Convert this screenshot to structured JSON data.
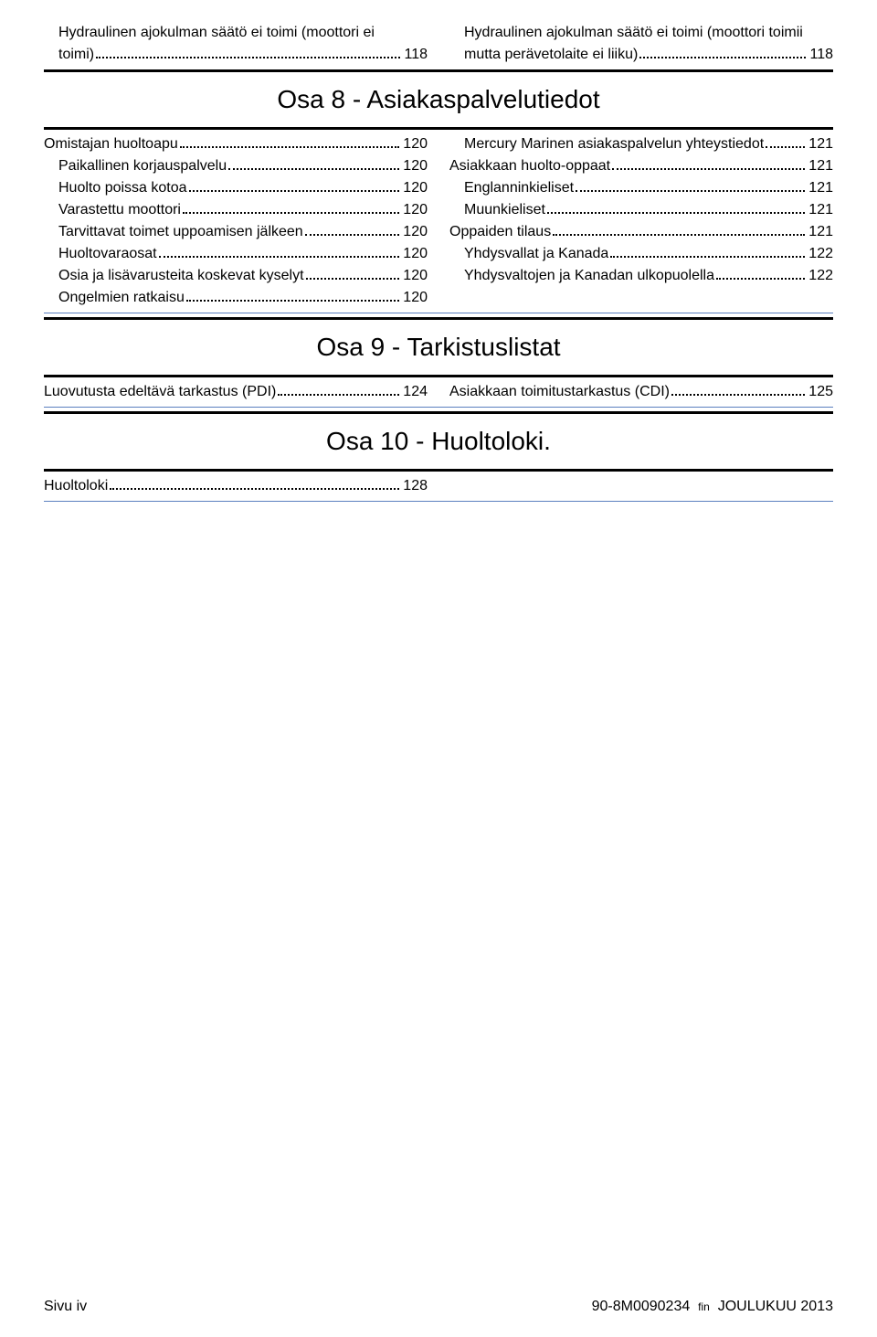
{
  "top": {
    "left": {
      "label_line1": "Hydraulinen ajokulman säätö ei toimi (moottori ei",
      "label_line2": "toimi)",
      "page": "118"
    },
    "right": {
      "label_line1": "Hydraulinen ajokulman säätö ei toimi (moottori toimii",
      "label_line2": "mutta perävetolaite ei liiku)",
      "page": "118"
    }
  },
  "section8": {
    "title": "Osa 8 - Asiakaspalvelutiedot",
    "left": [
      {
        "label": "Omistajan huoltoapu",
        "page": "120",
        "indent": 0
      },
      {
        "label": "Paikallinen korjauspalvelu",
        "page": "120",
        "indent": 1
      },
      {
        "label": "Huolto poissa kotoa",
        "page": "120",
        "indent": 1
      },
      {
        "label": "Varastettu moottori",
        "page": "120",
        "indent": 1
      },
      {
        "label": "Tarvittavat toimet uppoamisen jälkeen",
        "page": "120",
        "indent": 1
      },
      {
        "label": "Huoltovaraosat",
        "page": "120",
        "indent": 1
      },
      {
        "label": "Osia ja lisävarusteita koskevat kyselyt",
        "page": "120",
        "indent": 1
      },
      {
        "label": "Ongelmien ratkaisu",
        "page": "120",
        "indent": 1
      }
    ],
    "right": [
      {
        "label": "Mercury Marinen asiakaspalvelun yhteystiedot",
        "page": "121",
        "indent": 1
      },
      {
        "label": "Asiakkaan huolto-oppaat",
        "page": "121",
        "indent": 0
      },
      {
        "label": "Englanninkieliset",
        "page": "121",
        "indent": 1
      },
      {
        "label": "Muunkieliset",
        "page": "121",
        "indent": 1
      },
      {
        "label": "Oppaiden tilaus",
        "page": "121",
        "indent": 0
      },
      {
        "label": "Yhdysvallat ja Kanada",
        "page": "122",
        "indent": 1
      },
      {
        "label": "Yhdysvaltojen ja Kanadan ulkopuolella",
        "page": "122",
        "indent": 1
      }
    ]
  },
  "section9": {
    "title": "Osa 9 - Tarkistuslistat",
    "left": [
      {
        "label": "Luovutusta edeltävä tarkastus (PDI)",
        "page": "124",
        "indent": 0
      }
    ],
    "right": [
      {
        "label": "Asiakkaan toimitustarkastus (CDI)",
        "page": "125",
        "indent": 0
      }
    ]
  },
  "section10": {
    "title": "Osa 10 - Huoltoloki.",
    "left": [
      {
        "label": "Huoltoloki",
        "page": "128",
        "indent": 0
      }
    ]
  },
  "footer": {
    "left": "Sivu  iv",
    "right_code": "90-8M0090234",
    "right_lang": "fin",
    "right_date": "JOULUKUU  2013"
  }
}
